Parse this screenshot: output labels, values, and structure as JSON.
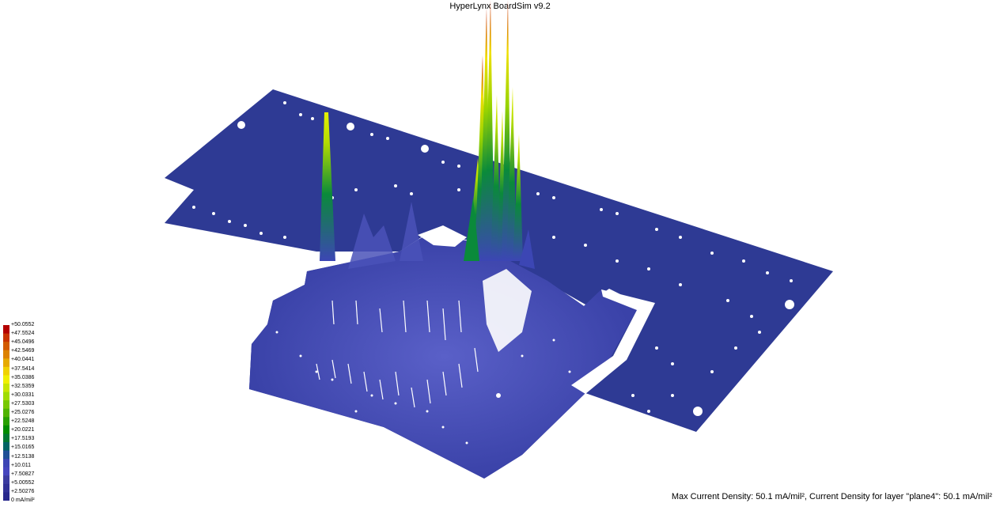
{
  "app": {
    "title": "HyperLynx BoardSim v9.2"
  },
  "status": {
    "text": "Max Current Density: 50.1 mA/mil², Current Density for layer \"plane4\": 50.1 mA/mil²"
  },
  "legend": {
    "labels": [
      "+50.0552",
      "+47.5524",
      "+45.0496",
      "+42.5469",
      "+40.0441",
      "+37.5414",
      "+35.0386",
      "+32.5359",
      "+30.0331",
      "+27.5303",
      "+25.0276",
      "+22.5248",
      "+20.0221",
      "+17.5193",
      "+15.0165",
      "+12.5138",
      "+10.011",
      "+7.50827",
      "+5.00552",
      "+2.50276",
      "0 mA/mil²"
    ],
    "colors": [
      "#b40000",
      "#c83200",
      "#d25a00",
      "#dc8200",
      "#e6aa00",
      "#f0d200",
      "#f0f000",
      "#c8e600",
      "#a0dc00",
      "#78c800",
      "#50b400",
      "#28a000",
      "#008c00",
      "#007832",
      "#006464",
      "#1e5096",
      "#3c46b4",
      "#4646be",
      "#3c3ca0",
      "#323296",
      "#28288c"
    ]
  },
  "board": {
    "surface_color": "#2e3a94",
    "spike_color_high": "#d01e00"
  }
}
